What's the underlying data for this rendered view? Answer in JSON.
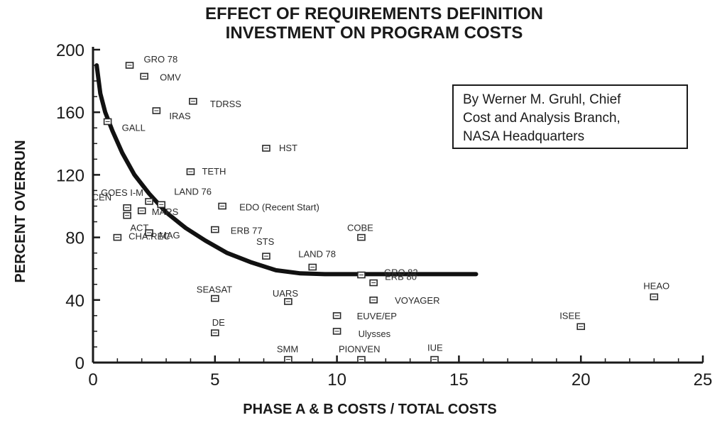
{
  "chart_data": {
    "type": "scatter",
    "title_lines": [
      "EFFECT OF REQUIREMENTS DEFINITION",
      "INVESTMENT ON PROGRAM COSTS"
    ],
    "xlabel": "PHASE A & B COSTS / TOTAL COSTS",
    "ylabel": "PERCENT OVERRUN",
    "xlim": [
      0,
      25
    ],
    "ylim": [
      0,
      200
    ],
    "x_ticks": [
      0,
      5,
      10,
      15,
      20,
      25
    ],
    "y_ticks": [
      0,
      40,
      80,
      120,
      160,
      200
    ],
    "grid": false,
    "annotation_lines": [
      "By Werner M. Gruhl, Chief",
      "Cost and Analysis Branch,",
      "NASA Headquarters"
    ],
    "annotation_placement": "top-right",
    "points": [
      {
        "label": "GRO 78",
        "x": 1.5,
        "y": 190
      },
      {
        "label": "OMV",
        "x": 2.1,
        "y": 183
      },
      {
        "label": "TDRSS",
        "x": 4.1,
        "y": 167
      },
      {
        "label": "IRAS",
        "x": 2.6,
        "y": 161
      },
      {
        "label": "GALL",
        "x": 0.6,
        "y": 154
      },
      {
        "label": "HST",
        "x": 7.1,
        "y": 137
      },
      {
        "label": "TETH",
        "x": 4.0,
        "y": 122
      },
      {
        "label": "GOES I-M",
        "x": 2.3,
        "y": 103
      },
      {
        "label": "CEN",
        "x": 1.4,
        "y": 99
      },
      {
        "label": "LAND 76",
        "x": 2.8,
        "y": 101
      },
      {
        "label": "EDO (Recent Start)",
        "x": 5.3,
        "y": 100
      },
      {
        "label": "MARS",
        "x": 2.0,
        "y": 97
      },
      {
        "label": "ERB 77",
        "x": 5.0,
        "y": 85
      },
      {
        "label": "ACT",
        "x": 1.0,
        "y": 80
      },
      {
        "label": "MAG",
        "x": 2.3,
        "y": 83
      },
      {
        "label": "CHA.REC",
        "x": 1.4,
        "y": 94
      },
      {
        "label": "COBE",
        "x": 11.0,
        "y": 80
      },
      {
        "label": "STS",
        "x": 7.1,
        "y": 68
      },
      {
        "label": "LAND 78",
        "x": 9.0,
        "y": 61
      },
      {
        "label": "GRO 82",
        "x": 11.0,
        "y": 56
      },
      {
        "label": "ERB 80",
        "x": 11.5,
        "y": 51
      },
      {
        "label": "SEASAT",
        "x": 5.0,
        "y": 41
      },
      {
        "label": "UARS",
        "x": 8.0,
        "y": 39
      },
      {
        "label": "VOYAGER",
        "x": 11.5,
        "y": 40
      },
      {
        "label": "HEAO",
        "x": 23.0,
        "y": 42
      },
      {
        "label": "EUVE/EP",
        "x": 10.0,
        "y": 30
      },
      {
        "label": "ISEE",
        "x": 20.0,
        "y": 23
      },
      {
        "label": "DE",
        "x": 5.0,
        "y": 19
      },
      {
        "label": "Ulysses",
        "x": 10.0,
        "y": 20
      },
      {
        "label": "SMM",
        "x": 8.0,
        "y": 2
      },
      {
        "label": "PIONVEN",
        "x": 11.0,
        "y": 2
      },
      {
        "label": "IUE",
        "x": 14.0,
        "y": 2
      }
    ],
    "trend_curve": [
      [
        0.15,
        190
      ],
      [
        0.3,
        172
      ],
      [
        0.5,
        160
      ],
      [
        0.8,
        148
      ],
      [
        1.2,
        134
      ],
      [
        1.7,
        120
      ],
      [
        2.3,
        108
      ],
      [
        3.0,
        96
      ],
      [
        3.8,
        86
      ],
      [
        4.6,
        78
      ],
      [
        5.5,
        70
      ],
      [
        6.5,
        64
      ],
      [
        7.5,
        59
      ],
      [
        8.5,
        57
      ],
      [
        9.5,
        56.5
      ],
      [
        11.0,
        56.5
      ],
      [
        13.0,
        56.5
      ],
      [
        15.7,
        56.5
      ]
    ]
  }
}
